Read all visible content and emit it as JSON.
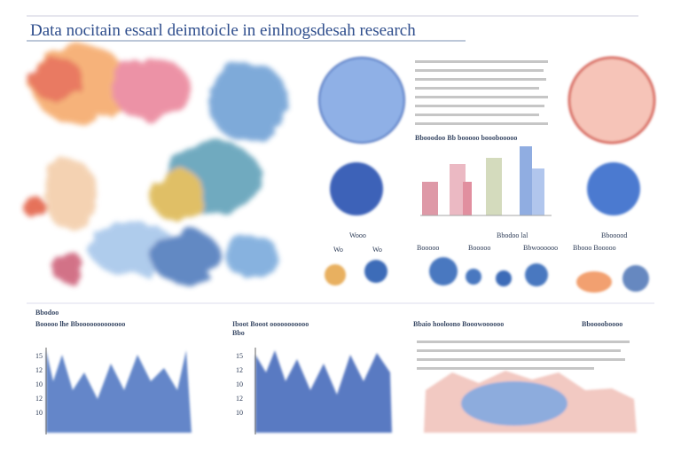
{
  "header": {
    "title": "Data nocitain essarl deimtoicle in einlnogsdesah research"
  },
  "panels": {
    "top_text_heading": "Bbooodoo Bb booooo booobooooo",
    "circle_labels": [
      "Wooo",
      "Wo",
      "Wo"
    ],
    "row_labels": [
      "Booooo",
      "Booooo",
      "Bbodoo lal",
      "Bbwoooooo",
      "Bbooood",
      "Bbooo Booooo"
    ],
    "bottom_heading": "Bbodoo",
    "bottom_titles": [
      "Booooo lhe  Bbooooooooooooo",
      "Iboot Booot  ooooooooooo",
      "Bbaio hooloono Booowoooooo",
      "Bbooooboooo"
    ],
    "left_axis": [
      "15",
      "12",
      "10",
      "12",
      "10"
    ],
    "mid_axis": [
      "15",
      "12",
      "10",
      "12",
      "10"
    ],
    "left_axis_top": "",
    "mid_axis_top": "Bbo"
  }
}
